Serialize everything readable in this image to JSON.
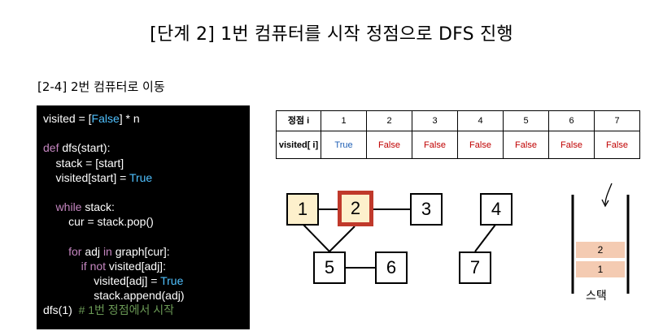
{
  "title": "[단계 2] 1번 컴퓨터를 시작 정점으로 DFS 진행",
  "subtitle": "[2-4] 2번 컴퓨터로 이동",
  "code": {
    "l1a": "visited = [",
    "l1b": "False",
    "l1c": "] * n",
    "l3kw": "def",
    "l3a": " dfs(start):",
    "l4": "    stack = [start]",
    "l5a": "    visited[start] = ",
    "l5b": "True",
    "l7kw": "    while",
    "l7a": " stack:",
    "l8": "        cur = stack.pop()",
    "l10kw1": "        for",
    "l10a": " adj ",
    "l10kw2": "in",
    "l10b": " graph[cur]:",
    "l11kw": "            if not",
    "l11a": " visited[adj]:",
    "l12a": "                visited[adj] = ",
    "l12b": "True",
    "l13": "                stack.append(adj)",
    "l14a": "dfs(1)  ",
    "l14b": "# 1번 정점에서 시작"
  },
  "table": {
    "header_label": "정점 i",
    "row_label": "visited[ i]",
    "vertices": [
      "1",
      "2",
      "3",
      "4",
      "5",
      "6",
      "7"
    ],
    "visited": [
      "True",
      "False",
      "False",
      "False",
      "False",
      "False",
      "False"
    ]
  },
  "graph": {
    "nodes": [
      {
        "id": "1",
        "label": "1",
        "state": "visited"
      },
      {
        "id": "2",
        "label": "2",
        "state": "current"
      },
      {
        "id": "3",
        "label": "3",
        "state": "none"
      },
      {
        "id": "4",
        "label": "4",
        "state": "none"
      },
      {
        "id": "5",
        "label": "5",
        "state": "none"
      },
      {
        "id": "6",
        "label": "6",
        "state": "none"
      },
      {
        "id": "7",
        "label": "7",
        "state": "none"
      }
    ],
    "edges": [
      [
        "1",
        "2"
      ],
      [
        "2",
        "3"
      ],
      [
        "1",
        "5"
      ],
      [
        "2",
        "5"
      ],
      [
        "5",
        "6"
      ],
      [
        "4",
        "7"
      ]
    ]
  },
  "stack": {
    "label": "스택",
    "items": [
      "1",
      "2"
    ],
    "colors": {
      "item": "#f4cbb2"
    }
  },
  "colors": {
    "true": "#1f5fb4",
    "false": "#c00000",
    "visited_fill": "#fdf0cc",
    "current_border": "#c0392b"
  }
}
